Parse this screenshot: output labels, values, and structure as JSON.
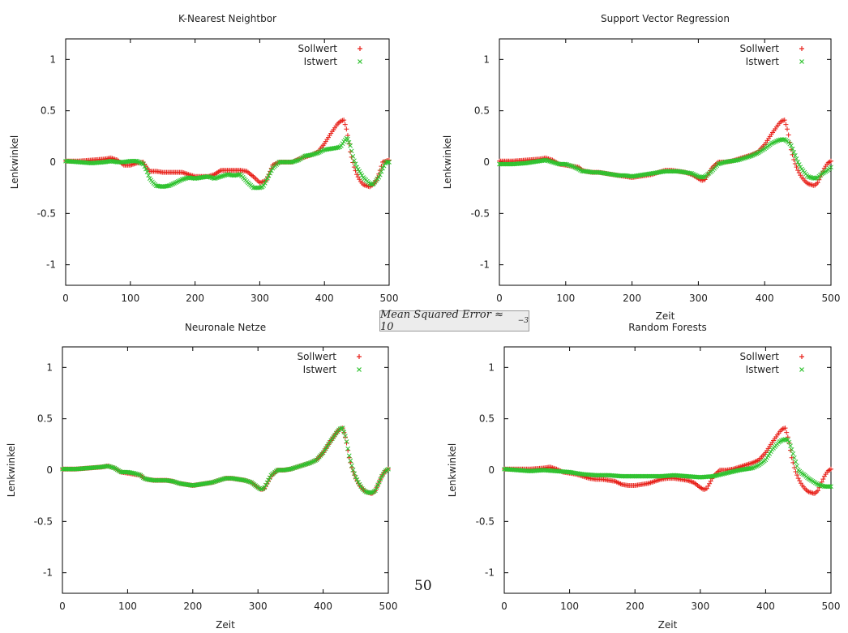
{
  "page_number": "50",
  "annotation": {
    "text": "Mean Squared Error ≈ 10",
    "exponent": "−3"
  },
  "chart_data": [
    {
      "type": "scatter",
      "title": "K-Nearest Neightbor",
      "xlabel": "",
      "ylabel": "Lenkwinkel",
      "xlim": [
        0,
        500
      ],
      "ylim": [
        -1.2,
        1.2
      ],
      "xticks": [
        0,
        100,
        200,
        300,
        400,
        500
      ],
      "yticks": [
        1,
        0.5,
        0,
        -0.5,
        -1
      ],
      "ytick_labels": [
        "1",
        "0.5",
        "0",
        "-0.5",
        "-1"
      ],
      "grid": false,
      "legend_position": "top-right",
      "series": [
        {
          "name": "Sollwert",
          "marker": "+",
          "color": "#e8221b",
          "x": [
            0,
            20,
            40,
            60,
            70,
            80,
            90,
            100,
            110,
            120,
            125,
            130,
            140,
            150,
            160,
            170,
            180,
            190,
            200,
            210,
            220,
            230,
            240,
            250,
            260,
            270,
            280,
            290,
            300,
            310,
            320,
            330,
            340,
            350,
            360,
            370,
            380,
            390,
            400,
            410,
            420,
            425,
            430,
            435,
            440,
            445,
            450,
            455,
            460,
            465,
            470,
            475,
            480,
            485,
            490,
            495,
            500
          ],
          "y": [
            0.01,
            0.01,
            0.02,
            0.03,
            0.04,
            0.02,
            -0.03,
            -0.03,
            -0.01,
            0.0,
            -0.05,
            -0.09,
            -0.09,
            -0.1,
            -0.1,
            -0.1,
            -0.1,
            -0.12,
            -0.14,
            -0.14,
            -0.14,
            -0.12,
            -0.08,
            -0.08,
            -0.08,
            -0.08,
            -0.09,
            -0.14,
            -0.2,
            -0.18,
            -0.03,
            0.0,
            0.0,
            0.0,
            0.03,
            0.05,
            0.07,
            0.1,
            0.18,
            0.28,
            0.37,
            0.4,
            0.41,
            0.3,
            0.1,
            -0.03,
            -0.12,
            -0.18,
            -0.22,
            -0.23,
            -0.24,
            -0.22,
            -0.18,
            -0.1,
            0.0,
            0.01,
            0.02
          ]
        },
        {
          "name": "Istwert",
          "marker": "x",
          "color": "#2ec22e",
          "x": [
            0,
            20,
            40,
            60,
            70,
            80,
            90,
            100,
            110,
            120,
            125,
            130,
            135,
            140,
            150,
            160,
            170,
            180,
            190,
            200,
            210,
            220,
            230,
            240,
            250,
            260,
            270,
            280,
            290,
            300,
            305,
            310,
            320,
            330,
            340,
            350,
            360,
            370,
            380,
            390,
            400,
            410,
            420,
            425,
            430,
            435,
            440,
            445,
            450,
            455,
            460,
            465,
            470,
            475,
            480,
            485,
            490,
            495,
            500
          ],
          "y": [
            0.01,
            0.0,
            -0.01,
            0.0,
            0.01,
            0.0,
            0.0,
            0.01,
            0.01,
            -0.02,
            -0.08,
            -0.16,
            -0.2,
            -0.23,
            -0.24,
            -0.23,
            -0.2,
            -0.17,
            -0.15,
            -0.16,
            -0.15,
            -0.14,
            -0.16,
            -0.14,
            -0.12,
            -0.13,
            -0.12,
            -0.19,
            -0.25,
            -0.25,
            -0.24,
            -0.18,
            -0.06,
            0.0,
            0.0,
            0.0,
            0.02,
            0.06,
            0.07,
            0.09,
            0.12,
            0.13,
            0.14,
            0.15,
            0.2,
            0.24,
            0.16,
            0.03,
            -0.05,
            -0.1,
            -0.15,
            -0.18,
            -0.21,
            -0.22,
            -0.18,
            -0.14,
            -0.06,
            0.0,
            0.0
          ]
        }
      ]
    },
    {
      "type": "scatter",
      "title": "Support Vector Regression",
      "xlabel": "Zeit",
      "ylabel": "Lenkwinkel",
      "xlim": [
        0,
        500
      ],
      "ylim": [
        -1.2,
        1.2
      ],
      "xticks": [
        0,
        100,
        200,
        300,
        400,
        500
      ],
      "yticks": [
        1,
        0.5,
        0,
        -0.5,
        -1
      ],
      "ytick_labels": [
        "1",
        "0.5",
        "0",
        "-0.5",
        "-1"
      ],
      "grid": false,
      "legend_position": "top-right",
      "series": [
        {
          "name": "Sollwert",
          "marker": "+",
          "color": "#e8221b",
          "x": [
            0,
            20,
            40,
            60,
            70,
            80,
            90,
            100,
            110,
            120,
            125,
            130,
            140,
            150,
            160,
            170,
            180,
            190,
            200,
            210,
            220,
            230,
            240,
            250,
            260,
            270,
            280,
            290,
            300,
            305,
            310,
            320,
            330,
            340,
            350,
            360,
            370,
            380,
            390,
            400,
            410,
            420,
            425,
            430,
            435,
            440,
            445,
            450,
            455,
            460,
            465,
            470,
            475,
            480,
            485,
            490,
            495,
            500
          ],
          "y": [
            0.01,
            0.01,
            0.02,
            0.03,
            0.04,
            0.02,
            -0.02,
            -0.03,
            -0.04,
            -0.05,
            -0.08,
            -0.09,
            -0.1,
            -0.1,
            -0.11,
            -0.12,
            -0.13,
            -0.14,
            -0.15,
            -0.14,
            -0.13,
            -0.12,
            -0.1,
            -0.08,
            -0.08,
            -0.09,
            -0.1,
            -0.12,
            -0.16,
            -0.18,
            -0.17,
            -0.06,
            0.0,
            0.0,
            0.01,
            0.03,
            0.05,
            0.07,
            0.1,
            0.17,
            0.27,
            0.36,
            0.4,
            0.41,
            0.3,
            0.12,
            0.0,
            -0.08,
            -0.14,
            -0.18,
            -0.21,
            -0.22,
            -0.23,
            -0.2,
            -0.13,
            -0.06,
            -0.01,
            0.01
          ]
        },
        {
          "name": "Istwert",
          "marker": "x",
          "color": "#2ec22e",
          "x": [
            0,
            20,
            40,
            60,
            70,
            80,
            90,
            100,
            110,
            120,
            125,
            130,
            140,
            150,
            160,
            170,
            180,
            190,
            200,
            210,
            220,
            230,
            240,
            250,
            260,
            270,
            280,
            290,
            300,
            305,
            310,
            320,
            330,
            340,
            350,
            360,
            370,
            380,
            390,
            400,
            410,
            420,
            425,
            430,
            435,
            440,
            445,
            450,
            455,
            460,
            465,
            470,
            475,
            480,
            485,
            490,
            495,
            500
          ],
          "y": [
            -0.02,
            -0.02,
            -0.01,
            0.01,
            0.02,
            0.0,
            -0.02,
            -0.02,
            -0.04,
            -0.07,
            -0.09,
            -0.09,
            -0.1,
            -0.1,
            -0.11,
            -0.12,
            -0.13,
            -0.13,
            -0.14,
            -0.13,
            -0.12,
            -0.11,
            -0.1,
            -0.09,
            -0.09,
            -0.09,
            -0.1,
            -0.11,
            -0.14,
            -0.15,
            -0.14,
            -0.09,
            -0.02,
            0.0,
            0.01,
            0.02,
            0.04,
            0.06,
            0.09,
            0.13,
            0.18,
            0.21,
            0.22,
            0.22,
            0.2,
            0.16,
            0.08,
            0.0,
            -0.06,
            -0.1,
            -0.14,
            -0.15,
            -0.16,
            -0.15,
            -0.12,
            -0.1,
            -0.08,
            -0.05
          ]
        }
      ]
    },
    {
      "type": "scatter",
      "title": "Neuronale Netze",
      "xlabel": "Zeit",
      "ylabel": "Lenkwinkel",
      "xlim": [
        0,
        500
      ],
      "ylim": [
        -1.2,
        1.2
      ],
      "xticks": [
        0,
        100,
        200,
        300,
        400,
        500
      ],
      "yticks": [
        1,
        0.5,
        0,
        -0.5,
        -1
      ],
      "ytick_labels": [
        "1",
        "0.5",
        "0",
        "-0.5",
        "-1"
      ],
      "grid": false,
      "legend_position": "top-right",
      "series": [
        {
          "name": "Sollwert",
          "marker": "+",
          "color": "#e8221b",
          "x": [
            0,
            20,
            40,
            60,
            70,
            80,
            90,
            100,
            110,
            120,
            125,
            130,
            140,
            150,
            160,
            170,
            180,
            190,
            200,
            210,
            220,
            230,
            240,
            250,
            260,
            270,
            280,
            290,
            300,
            305,
            310,
            320,
            330,
            340,
            350,
            360,
            370,
            380,
            390,
            400,
            410,
            420,
            425,
            430,
            435,
            440,
            445,
            450,
            455,
            460,
            465,
            470,
            475,
            480,
            485,
            490,
            495,
            500
          ],
          "y": [
            0.01,
            0.01,
            0.02,
            0.03,
            0.04,
            0.02,
            -0.02,
            -0.03,
            -0.04,
            -0.05,
            -0.08,
            -0.09,
            -0.1,
            -0.1,
            -0.1,
            -0.11,
            -0.13,
            -0.14,
            -0.15,
            -0.14,
            -0.13,
            -0.12,
            -0.1,
            -0.08,
            -0.08,
            -0.09,
            -0.1,
            -0.12,
            -0.17,
            -0.19,
            -0.18,
            -0.06,
            0.0,
            0.0,
            0.01,
            0.03,
            0.05,
            0.07,
            0.1,
            0.17,
            0.27,
            0.36,
            0.4,
            0.41,
            0.3,
            0.12,
            0.0,
            -0.08,
            -0.14,
            -0.18,
            -0.21,
            -0.22,
            -0.23,
            -0.2,
            -0.13,
            -0.06,
            -0.01,
            0.01
          ]
        },
        {
          "name": "Istwert",
          "marker": "x",
          "color": "#2ec22e",
          "x": [
            0,
            20,
            40,
            60,
            70,
            80,
            90,
            100,
            110,
            120,
            125,
            130,
            140,
            150,
            160,
            170,
            180,
            190,
            200,
            210,
            220,
            230,
            240,
            250,
            260,
            270,
            280,
            290,
            300,
            305,
            310,
            320,
            330,
            340,
            350,
            360,
            370,
            380,
            390,
            400,
            410,
            420,
            425,
            430,
            435,
            440,
            445,
            450,
            455,
            460,
            465,
            470,
            475,
            480,
            485,
            490,
            495,
            500
          ],
          "y": [
            0.01,
            0.01,
            0.02,
            0.03,
            0.04,
            0.02,
            -0.02,
            -0.02,
            -0.03,
            -0.05,
            -0.08,
            -0.09,
            -0.1,
            -0.1,
            -0.1,
            -0.11,
            -0.13,
            -0.14,
            -0.15,
            -0.14,
            -0.13,
            -0.12,
            -0.1,
            -0.08,
            -0.08,
            -0.09,
            -0.1,
            -0.12,
            -0.17,
            -0.19,
            -0.17,
            -0.05,
            0.0,
            0.0,
            0.01,
            0.03,
            0.05,
            0.07,
            0.1,
            0.17,
            0.27,
            0.36,
            0.4,
            0.41,
            0.31,
            0.14,
            0.02,
            -0.07,
            -0.13,
            -0.18,
            -0.21,
            -0.22,
            -0.22,
            -0.2,
            -0.13,
            -0.06,
            -0.01,
            0.01
          ]
        }
      ]
    },
    {
      "type": "scatter",
      "title": "Random Forests",
      "xlabel": "Zeit",
      "ylabel": "Lenkwinkel",
      "xlim": [
        0,
        500
      ],
      "ylim": [
        -1.2,
        1.2
      ],
      "xticks": [
        0,
        100,
        200,
        300,
        400,
        500
      ],
      "yticks": [
        1,
        0.5,
        0,
        -0.5,
        -1
      ],
      "ytick_labels": [
        "1",
        "0.5",
        "0",
        "-0.5",
        "-1"
      ],
      "grid": false,
      "legend_position": "top-right",
      "series": [
        {
          "name": "Sollwert",
          "marker": "+",
          "color": "#e8221b",
          "x": [
            0,
            20,
            40,
            60,
            70,
            80,
            90,
            100,
            110,
            120,
            130,
            140,
            150,
            160,
            170,
            180,
            190,
            200,
            210,
            220,
            230,
            240,
            250,
            260,
            270,
            280,
            290,
            300,
            305,
            310,
            320,
            330,
            340,
            350,
            360,
            370,
            380,
            390,
            400,
            410,
            420,
            425,
            430,
            435,
            440,
            445,
            450,
            455,
            460,
            465,
            470,
            475,
            480,
            485,
            490,
            495,
            500
          ],
          "y": [
            0.01,
            0.01,
            0.01,
            0.02,
            0.03,
            0.01,
            -0.02,
            -0.03,
            -0.04,
            -0.06,
            -0.08,
            -0.09,
            -0.09,
            -0.1,
            -0.11,
            -0.14,
            -0.15,
            -0.15,
            -0.14,
            -0.13,
            -0.11,
            -0.09,
            -0.08,
            -0.08,
            -0.09,
            -0.1,
            -0.12,
            -0.17,
            -0.19,
            -0.18,
            -0.06,
            0.0,
            0.0,
            0.01,
            0.03,
            0.05,
            0.07,
            0.1,
            0.17,
            0.27,
            0.36,
            0.4,
            0.41,
            0.3,
            0.12,
            0.0,
            -0.08,
            -0.14,
            -0.18,
            -0.21,
            -0.22,
            -0.23,
            -0.2,
            -0.13,
            -0.06,
            -0.01,
            0.01
          ]
        },
        {
          "name": "Istwert",
          "marker": "x",
          "color": "#2ec22e",
          "x": [
            0,
            20,
            40,
            60,
            80,
            100,
            120,
            140,
            160,
            180,
            200,
            220,
            240,
            260,
            280,
            300,
            320,
            340,
            360,
            380,
            390,
            400,
            410,
            420,
            425,
            430,
            435,
            440,
            445,
            450,
            455,
            460,
            465,
            470,
            475,
            480,
            485,
            490,
            495,
            500
          ],
          "y": [
            0.01,
            0.0,
            -0.01,
            0.0,
            -0.01,
            -0.02,
            -0.04,
            -0.05,
            -0.05,
            -0.06,
            -0.06,
            -0.06,
            -0.06,
            -0.05,
            -0.06,
            -0.07,
            -0.06,
            -0.03,
            0.0,
            0.02,
            0.05,
            0.1,
            0.2,
            0.27,
            0.29,
            0.3,
            0.29,
            0.2,
            0.1,
            0.0,
            -0.03,
            -0.05,
            -0.08,
            -0.1,
            -0.12,
            -0.14,
            -0.15,
            -0.16,
            -0.16,
            -0.16
          ]
        }
      ]
    }
  ]
}
